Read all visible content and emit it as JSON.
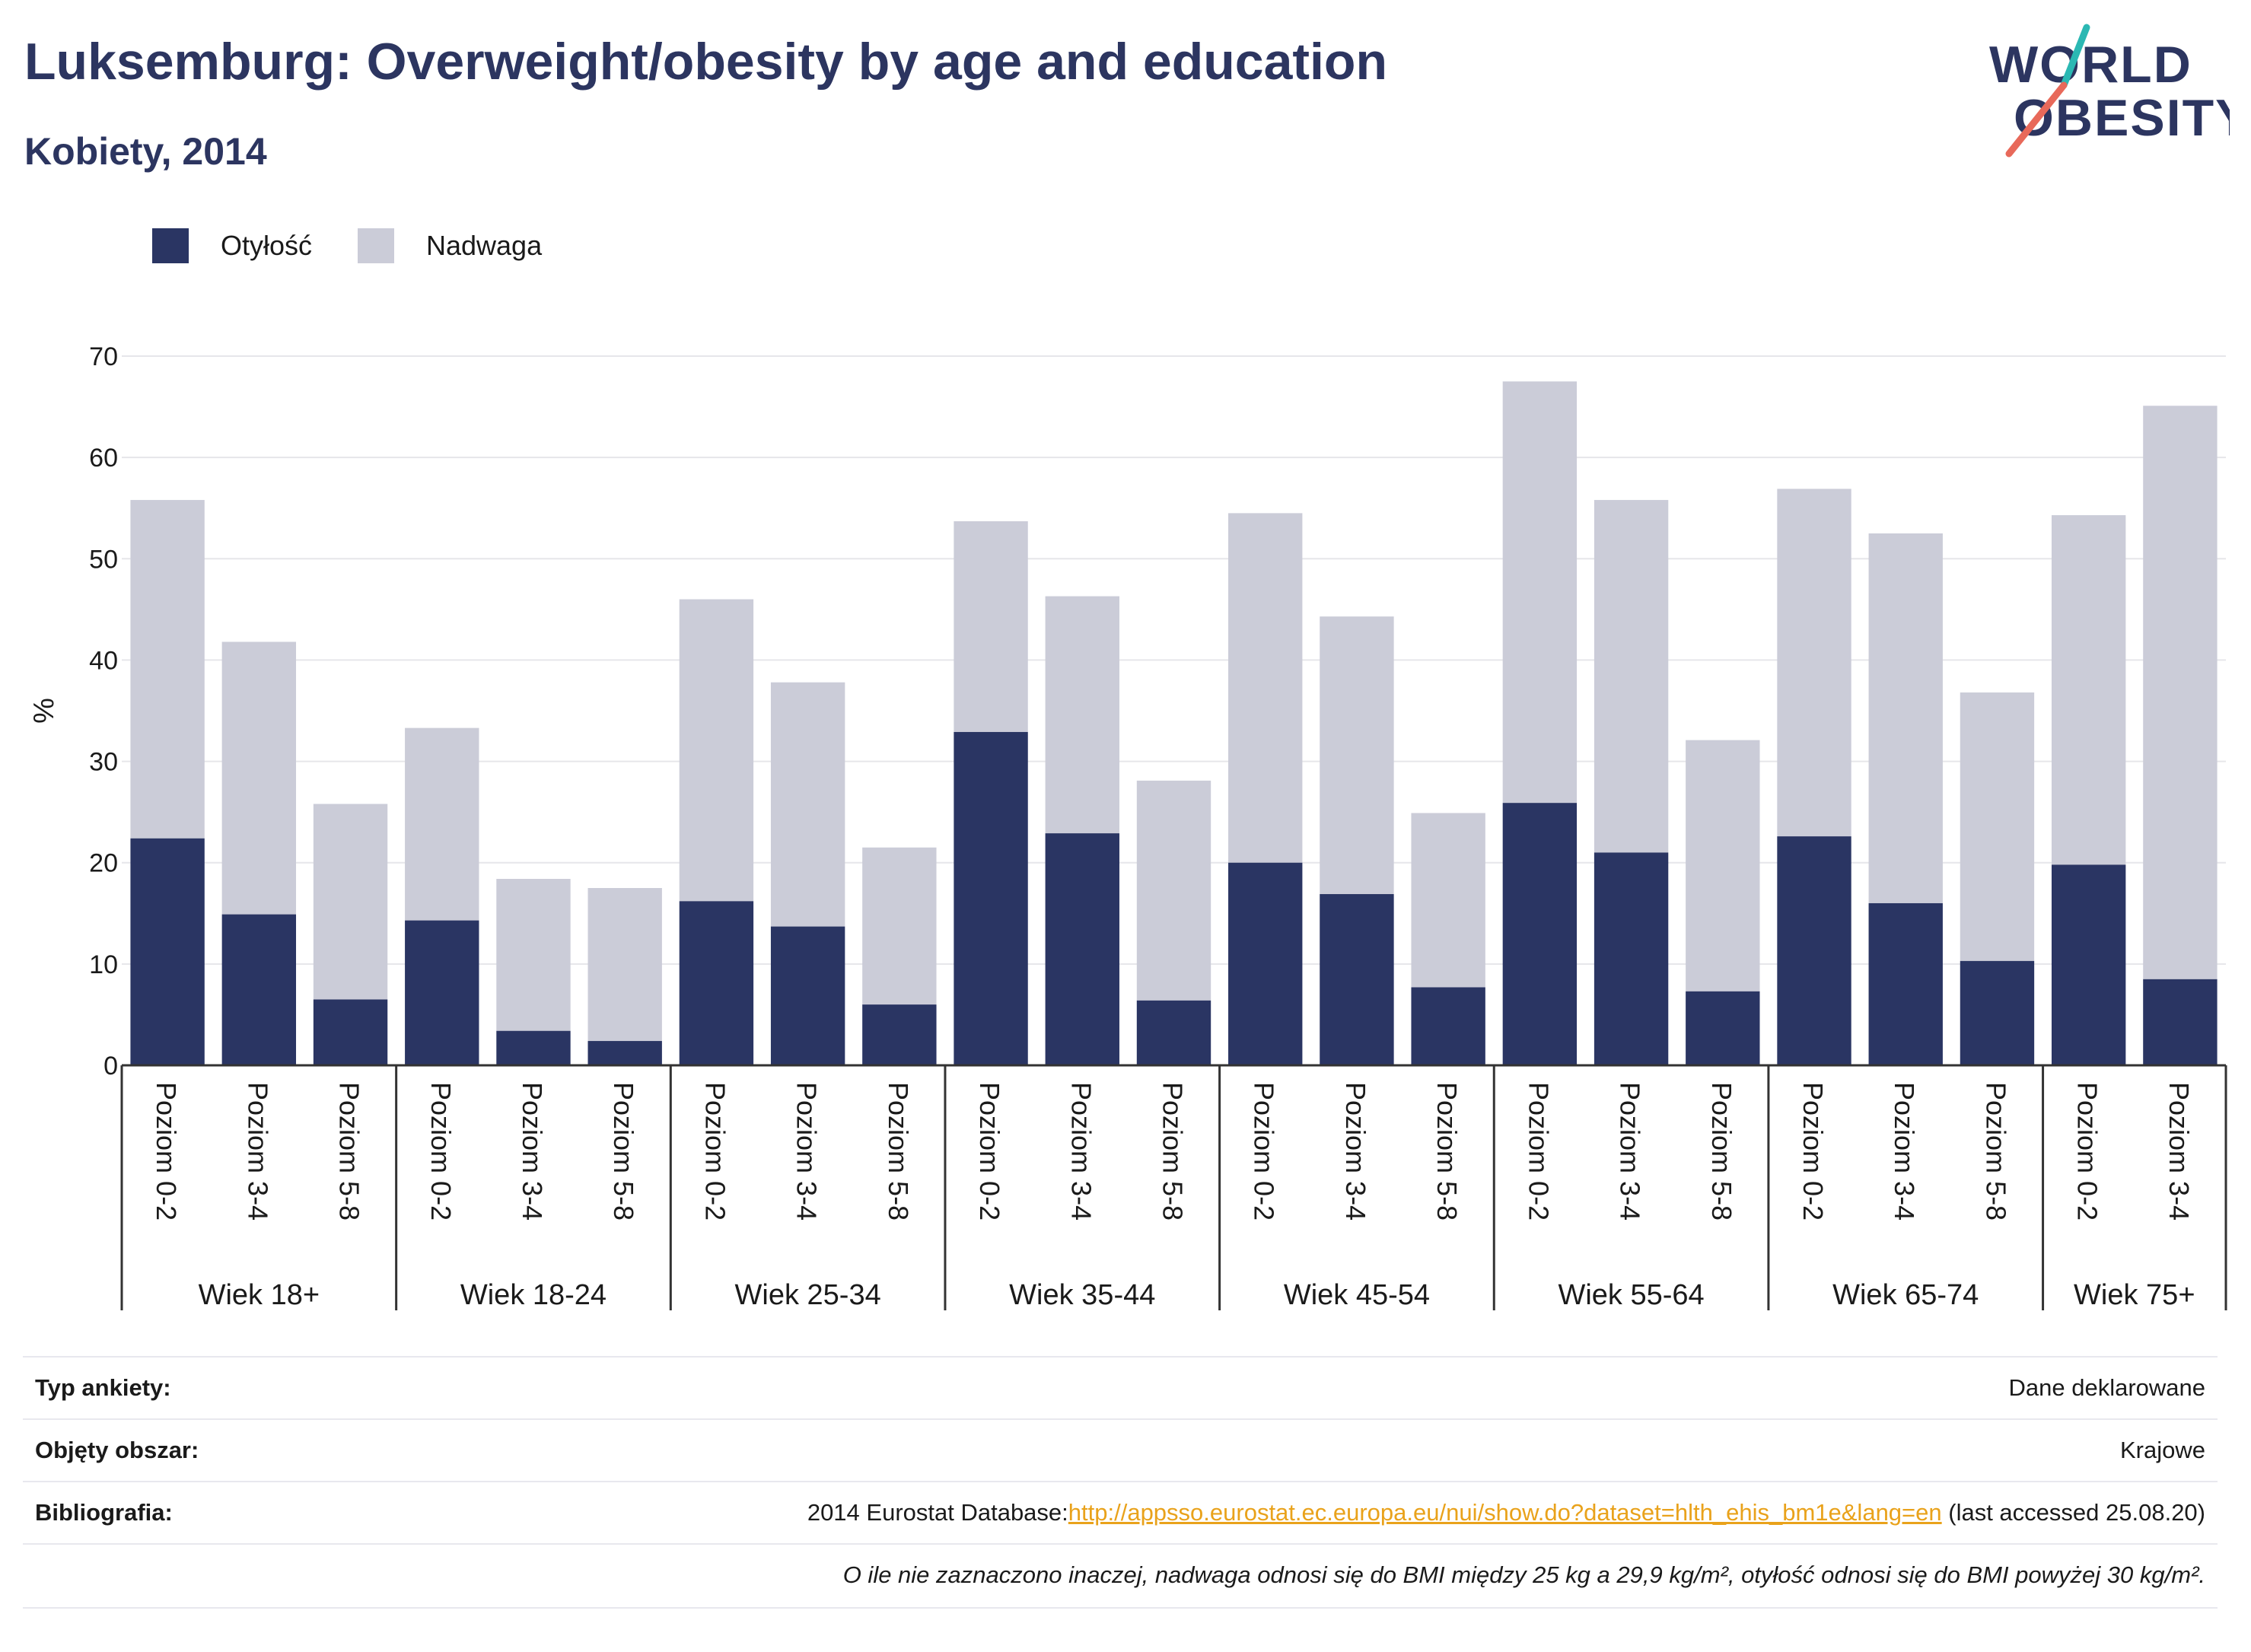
{
  "header": {
    "title": "Luksemburg: Overweight/obesity by age and education",
    "subtitle": "Kobiety, 2014"
  },
  "logo": {
    "line1": "WORLD",
    "line2": "OBESITY"
  },
  "colors": {
    "obesity": "#2a3563",
    "overweight": "#cbccd8",
    "title": "#2c3560",
    "link": "#e9a21b",
    "logo_teal": "#2bb8b3",
    "logo_coral": "#e8695a"
  },
  "chart_data": {
    "type": "bar",
    "stacked": true,
    "ylabel": "%",
    "ylim": [
      0,
      70
    ],
    "yticks": [
      0,
      10,
      20,
      30,
      40,
      50,
      60,
      70
    ],
    "grid": true,
    "legend_position": "top-left",
    "groups": [
      {
        "label": "Wiek 18+",
        "categories": [
          "Poziom 0-2",
          "Poziom 3-4",
          "Poziom 5-8"
        ]
      },
      {
        "label": "Wiek 18-24",
        "categories": [
          "Poziom 0-2",
          "Poziom 3-4",
          "Poziom 5-8"
        ]
      },
      {
        "label": "Wiek 25-34",
        "categories": [
          "Poziom 0-2",
          "Poziom 3-4",
          "Poziom 5-8"
        ]
      },
      {
        "label": "Wiek 35-44",
        "categories": [
          "Poziom 0-2",
          "Poziom 3-4",
          "Poziom 5-8"
        ]
      },
      {
        "label": "Wiek 45-54",
        "categories": [
          "Poziom 0-2",
          "Poziom 3-4",
          "Poziom 5-8"
        ]
      },
      {
        "label": "Wiek 55-64",
        "categories": [
          "Poziom 0-2",
          "Poziom 3-4",
          "Poziom 5-8"
        ]
      },
      {
        "label": "Wiek 65-74",
        "categories": [
          "Poziom 0-2",
          "Poziom 3-4",
          "Poziom 5-8"
        ]
      },
      {
        "label": "Wiek 75+",
        "categories": [
          "Poziom 0-2",
          "Poziom 3-4"
        ]
      }
    ],
    "series": [
      {
        "name": "Otyłość",
        "values": [
          22.4,
          14.9,
          6.5,
          14.3,
          3.4,
          2.4,
          16.2,
          13.7,
          6.0,
          32.9,
          22.9,
          6.4,
          20.0,
          16.9,
          7.7,
          25.9,
          21.0,
          7.3,
          22.6,
          16.0,
          10.3,
          19.8,
          8.5
        ]
      },
      {
        "name": "Nadwaga",
        "values": [
          33.4,
          26.9,
          19.3,
          19.0,
          15.0,
          15.1,
          29.8,
          24.1,
          15.5,
          20.8,
          23.4,
          21.7,
          34.5,
          27.4,
          17.2,
          41.6,
          34.8,
          24.8,
          34.3,
          36.5,
          26.5,
          34.5,
          56.6
        ]
      }
    ]
  },
  "footer": {
    "survey_label": "Typ ankiety:",
    "survey_value": "Dane deklarowane",
    "area_label": "Objęty obszar:",
    "area_value": "Krajowe",
    "bib_label": "Bibliografia:",
    "bib_prefix": "2014 Eurostat Database:",
    "bib_link": "http://appsso.eurostat.ec.europa.eu/nui/show.do?dataset=hlth_ehis_bm1e&lang=en",
    "bib_suffix": " (last accessed 25.08.20)",
    "note": "O ile nie zaznaczono inaczej, nadwaga odnosi się do BMI między 25 kg a 29,9 kg/m², otyłość odnosi się do BMI powyżej 30 kg/m²."
  }
}
